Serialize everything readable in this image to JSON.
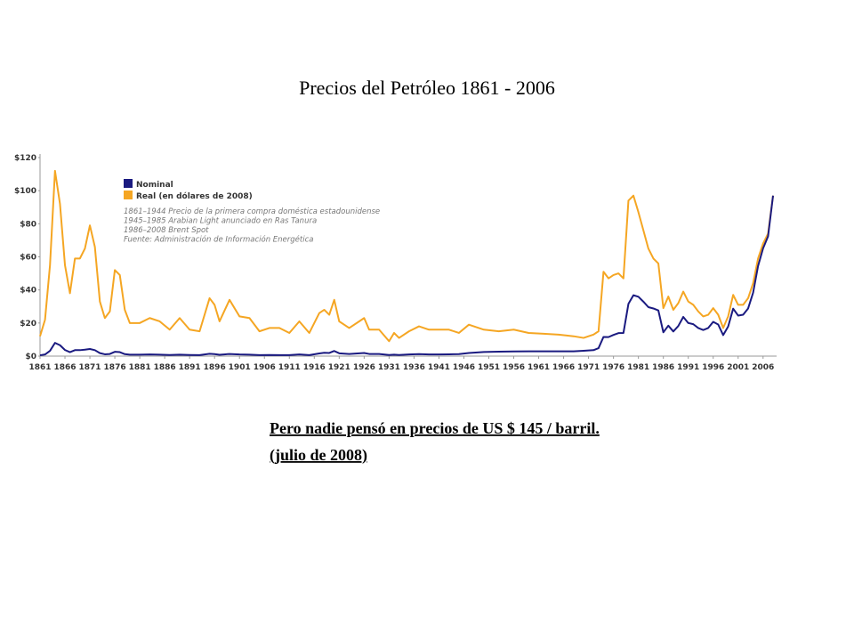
{
  "chart_data": {
    "type": "line",
    "title": "Precios del Petróleo 1861 - 2006",
    "x": [
      1861,
      1862,
      1863,
      1864,
      1865,
      1866,
      1867,
      1868,
      1869,
      1870,
      1871,
      1872,
      1873,
      1874,
      1875,
      1876,
      1877,
      1878,
      1879,
      1881,
      1883,
      1885,
      1887,
      1889,
      1891,
      1893,
      1895,
      1896,
      1897,
      1899,
      1901,
      1903,
      1905,
      1907,
      1909,
      1911,
      1913,
      1915,
      1917,
      1918,
      1919,
      1920,
      1921,
      1923,
      1925,
      1926,
      1927,
      1929,
      1931,
      1932,
      1933,
      1935,
      1937,
      1939,
      1941,
      1943,
      1945,
      1947,
      1950,
      1953,
      1956,
      1959,
      1962,
      1965,
      1968,
      1970,
      1972,
      1973,
      1974,
      1975,
      1976,
      1977,
      1978,
      1979,
      1980,
      1981,
      1982,
      1983,
      1984,
      1985,
      1986,
      1987,
      1988,
      1989,
      1990,
      1991,
      1992,
      1993,
      1994,
      1995,
      1996,
      1997,
      1998,
      1999,
      2000,
      2001,
      2002,
      2003,
      2004,
      2005,
      2006,
      2007,
      2008
    ],
    "series": [
      {
        "name": "Real (en dólares de 2008)",
        "color": "#f5a623",
        "values": [
          12,
          22,
          55,
          112,
          92,
          55,
          38,
          59,
          59,
          65,
          79,
          66,
          33,
          23,
          27,
          52,
          49,
          28,
          20,
          20,
          23,
          21,
          16,
          23,
          16,
          15,
          35,
          31,
          21,
          34,
          24,
          23,
          15,
          17,
          17,
          14,
          21,
          14,
          26,
          28,
          25,
          34,
          21,
          17,
          21,
          23,
          16,
          16,
          9,
          14,
          11,
          15,
          18,
          16,
          16,
          16,
          14,
          19,
          16,
          15,
          16,
          14,
          13.5,
          13,
          12,
          11,
          13,
          15,
          51,
          47,
          49,
          50,
          47,
          94,
          97,
          87,
          76,
          65,
          59,
          56,
          29,
          36,
          28,
          32,
          39,
          33,
          31,
          27,
          24,
          25,
          29,
          25,
          17,
          24,
          37,
          31,
          31,
          35,
          44,
          59,
          68,
          74,
          97
        ]
      },
      {
        "name": "Nominal",
        "color": "#1a1a80",
        "values": [
          0.5,
          1,
          3.2,
          8,
          6.6,
          3.7,
          2.4,
          3.6,
          3.6,
          3.9,
          4.3,
          3.6,
          1.8,
          1.1,
          1.3,
          2.6,
          2.4,
          1.2,
          0.9,
          0.9,
          1,
          0.9,
          0.7,
          0.9,
          0.7,
          0.6,
          1.4,
          1.2,
          0.8,
          1.3,
          1,
          0.9,
          0.6,
          0.7,
          0.6,
          0.6,
          1,
          0.6,
          1.6,
          2,
          1.9,
          3.1,
          1.7,
          1.3,
          1.7,
          1.9,
          1.3,
          1.3,
          0.7,
          0.9,
          0.7,
          1,
          1.2,
          1,
          1,
          1.1,
          1.2,
          1.9,
          2.5,
          2.7,
          2.8,
          2.9,
          2.9,
          2.9,
          2.9,
          3.2,
          3.6,
          4.8,
          11.6,
          11.5,
          12.8,
          13.9,
          14,
          31.6,
          36.8,
          35.9,
          32.9,
          29.6,
          28.8,
          27.6,
          14.4,
          18.4,
          14.9,
          18.2,
          23.7,
          20,
          19.3,
          17,
          15.8,
          17,
          20.7,
          19.1,
          12.7,
          17.9,
          28.7,
          24.5,
          25,
          28.8,
          38.3,
          54.5,
          65.1,
          72.4,
          97
        ]
      }
    ],
    "legend_order": [
      1,
      0
    ],
    "notes": [
      "1861–1944 Precio de la primera compra doméstica estadounidense",
      "1945–1985 Arabian Light anunciado en Ras Tanura",
      " 1986–2008 Brent Spot",
      "Fuente: Administración de Información Energética"
    ],
    "xlim": [
      1861,
      2008
    ],
    "xticks": [
      1861,
      1866,
      1871,
      1876,
      1881,
      1886,
      1891,
      1896,
      1901,
      1906,
      1911,
      1916,
      1921,
      1926,
      1931,
      1936,
      1941,
      1946,
      1951,
      1956,
      1961,
      1966,
      1971,
      1976,
      1981,
      1986,
      1991,
      1996,
      2001,
      2006
    ],
    "ylim": [
      0,
      120
    ],
    "yticks": [
      {
        "value": 0,
        "label": "$0"
      },
      {
        "value": 20,
        "label": "$20"
      },
      {
        "value": 40,
        "label": "$40"
      },
      {
        "value": 60,
        "label": "$60"
      },
      {
        "value": 80,
        "label": "$80"
      },
      {
        "value": 100,
        "label": "$100"
      },
      {
        "value": 120,
        "label": "$120"
      }
    ],
    "grid": false,
    "annotations": [
      "Pero nadie pensó en precios de US $ 145  / barril.",
      "(julio de 2008)"
    ]
  }
}
